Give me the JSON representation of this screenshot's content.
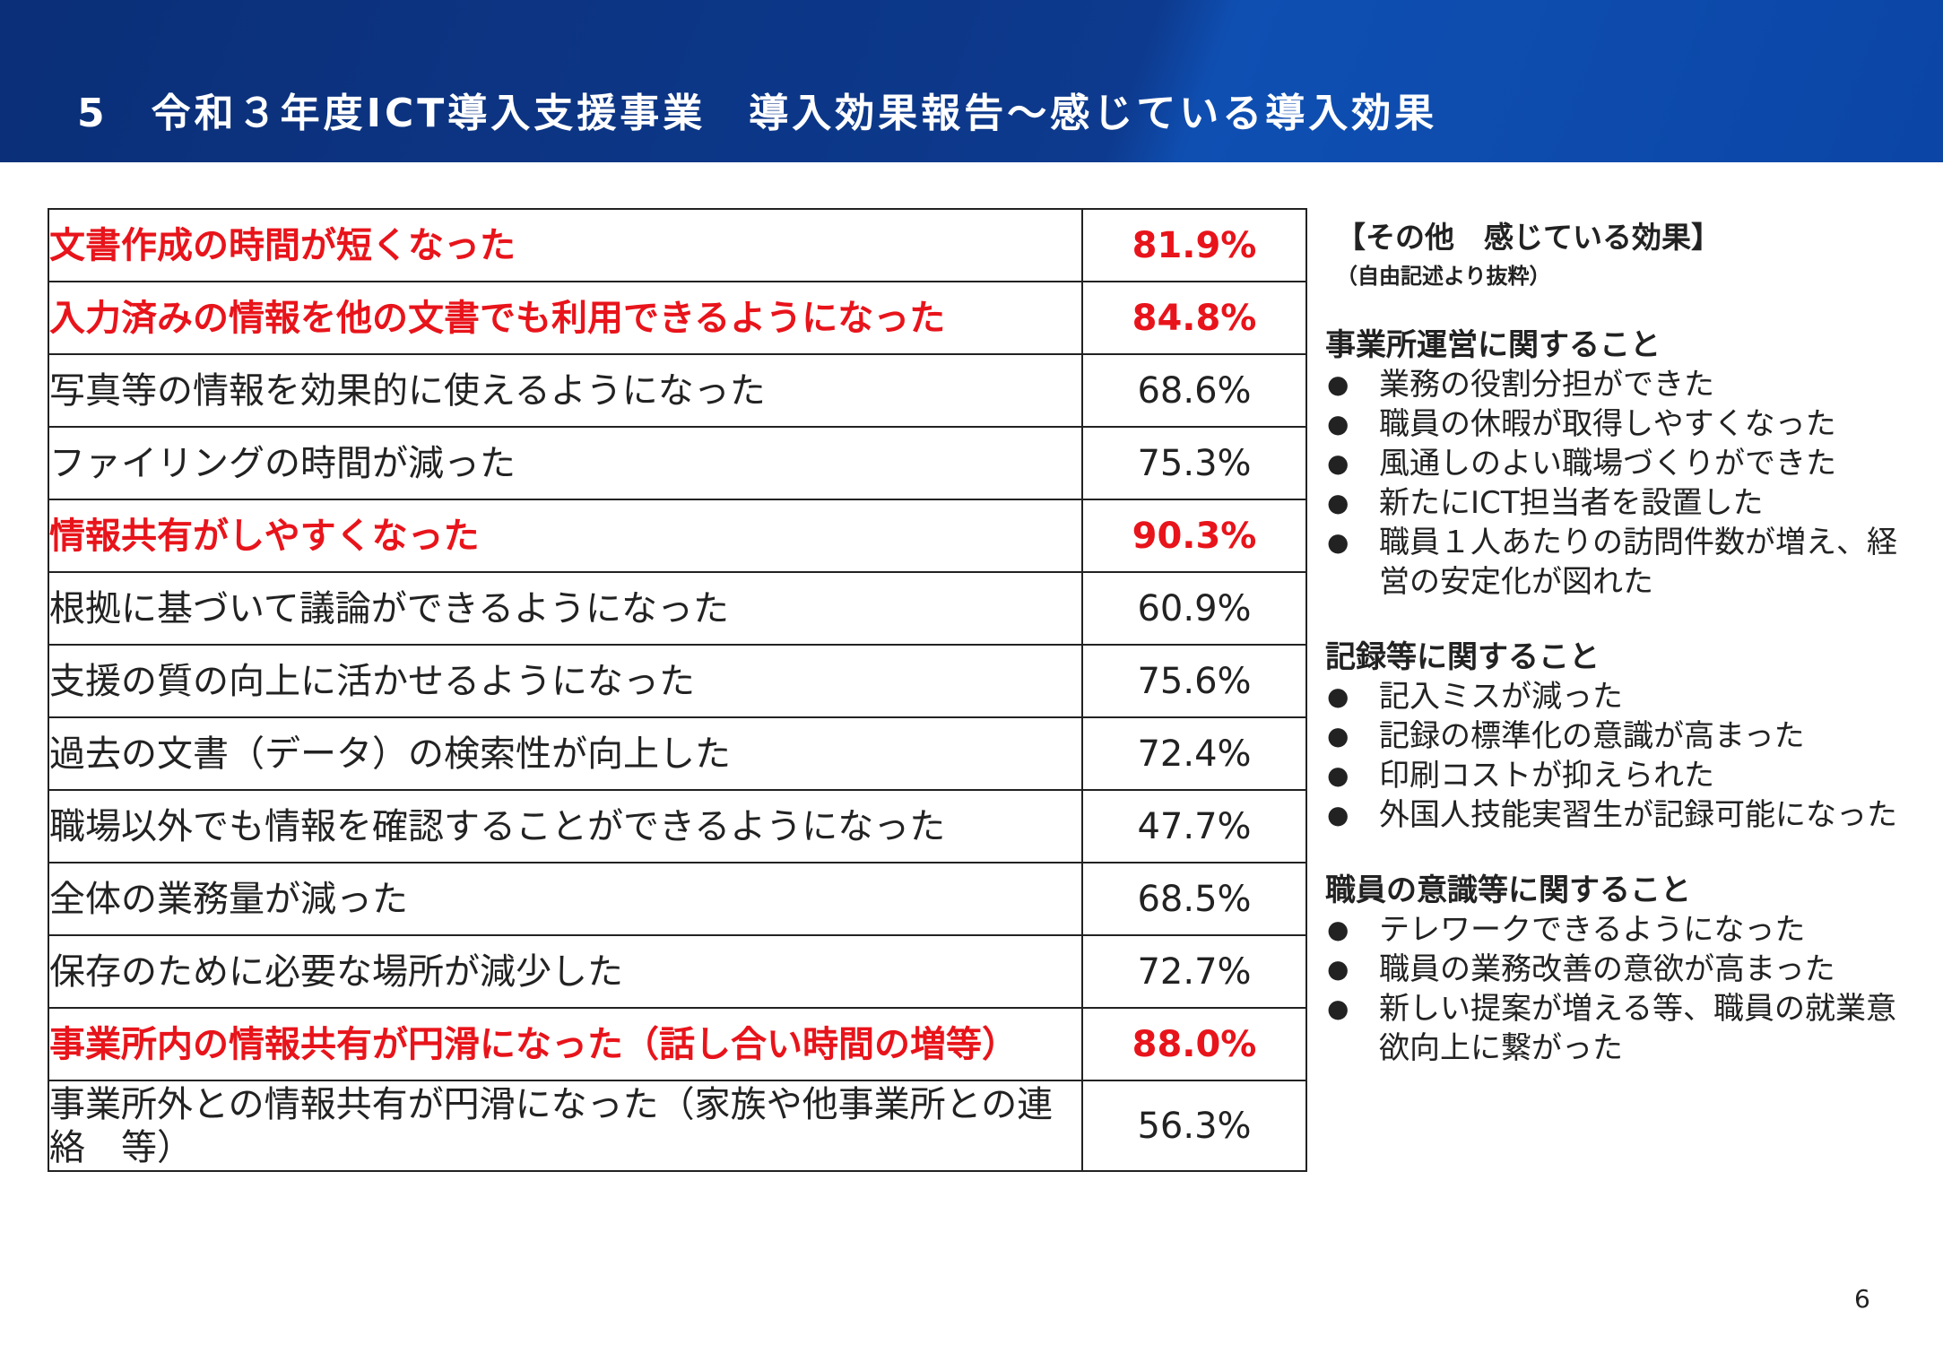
{
  "header": {
    "title": "5　令和３年度ICT導入支援事業　導入効果報告～感じている導入効果"
  },
  "table": {
    "highlight_color": "#e8141b",
    "rows": [
      {
        "label": "文書作成の時間が短くなった",
        "value": "81.9%",
        "highlight": true
      },
      {
        "label": "入力済みの情報を他の文書でも利用できるようになった",
        "value": "84.8%",
        "highlight": true
      },
      {
        "label": "写真等の情報を効果的に使えるようになった",
        "value": "68.6%",
        "highlight": false
      },
      {
        "label": "ファイリングの時間が減った",
        "value": "75.3%",
        "highlight": false
      },
      {
        "label": "情報共有がしやすくなった",
        "value": "90.3%",
        "highlight": true
      },
      {
        "label": "根拠に基づいて議論ができるようになった",
        "value": "60.9%",
        "highlight": false
      },
      {
        "label": "支援の質の向上に活かせるようになった",
        "value": "75.6%",
        "highlight": false
      },
      {
        "label": "過去の文書（データ）の検索性が向上した",
        "value": "72.4%",
        "highlight": false
      },
      {
        "label": "職場以外でも情報を確認することができるようになった",
        "value": "47.7%",
        "highlight": false
      },
      {
        "label": "全体の業務量が減った",
        "value": "68.5%",
        "highlight": false
      },
      {
        "label": "保存のために必要な場所が減少した",
        "value": "72.7%",
        "highlight": false
      },
      {
        "label": "事業所内の情報共有が円滑になった（話し合い時間の増等）",
        "value": "88.0%",
        "highlight": true
      },
      {
        "label": "事業所外との情報共有が円滑になった（家族や他事業所との連絡　等）",
        "value": "56.3%",
        "highlight": false
      }
    ]
  },
  "sidebar": {
    "title": "【その他　感じている効果】",
    "subtitle": "（自由記述より抜粋）",
    "sections": [
      {
        "heading": "事業所運営に関すること",
        "items": [
          "業務の役割分担ができた",
          "職員の休暇が取得しやすくなった",
          "風通しのよい職場づくりができた",
          "新たにICT担当者を設置した",
          "職員１人あたりの訪問件数が増え、経営の安定化が図れた"
        ]
      },
      {
        "heading": "記録等に関すること",
        "items": [
          "記入ミスが減った",
          "記録の標準化の意識が高まった",
          "印刷コストが抑えられた",
          "外国人技能実習生が記録可能になった"
        ]
      },
      {
        "heading": "職員の意識等に関すること",
        "items": [
          "テレワークできるようになった",
          "職員の業務改善の意欲が高まった",
          "新しい提案が増える等、職員の就業意欲向上に繋がった"
        ]
      }
    ]
  },
  "page_number": "6"
}
